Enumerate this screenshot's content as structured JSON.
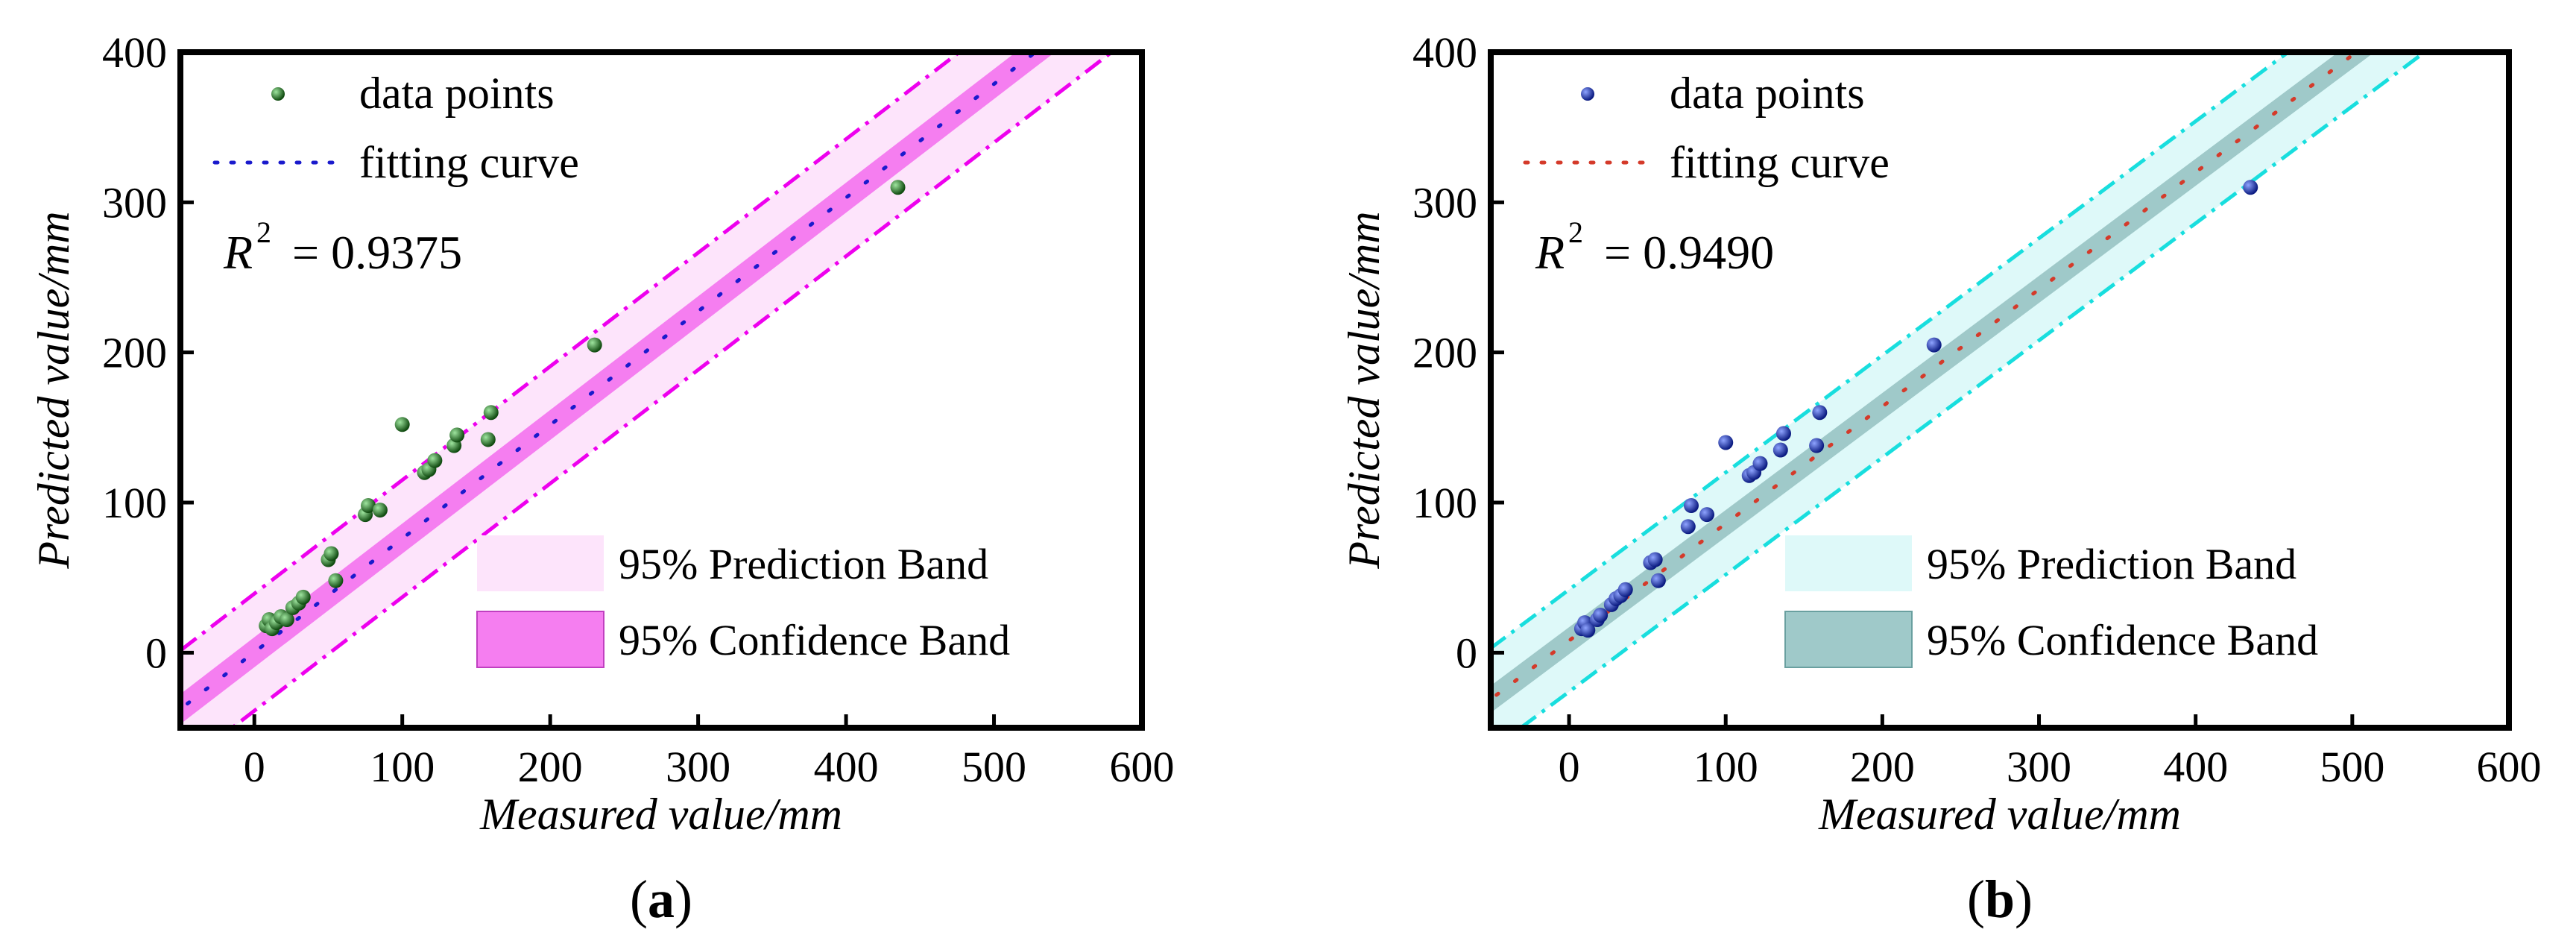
{
  "chart_data": [
    {
      "type": "scatter",
      "panel_label": "a",
      "xlabel": "Measured value/mm",
      "ylabel": "Predicted value/mm",
      "xlim": [
        -50,
        600
      ],
      "ylim": [
        -50,
        400
      ],
      "xticks": [
        0,
        100,
        200,
        300,
        400,
        500,
        600
      ],
      "yticks": [
        0,
        100,
        200,
        300,
        400
      ],
      "r2_label": "R",
      "r2_sup": "2",
      "r2_value": "= 0.9375",
      "fit": {
        "slope": 0.757,
        "intercept": 0.3
      },
      "confidence_halfwidth": 10,
      "prediction_halfwidth": 39,
      "colors": {
        "points": "#1e6b1e",
        "fit_line": "#1a1acc",
        "prediction_fill": "#fde4fb",
        "confidence_fill": "#f57ef0",
        "band_edge": "#ee00ee"
      },
      "legend": {
        "points": "data points",
        "fit": "fitting curve",
        "prediction": "95% Prediction Band",
        "confidence": "95% Confidence Band"
      },
      "points": [
        {
          "x": 8,
          "y": 18
        },
        {
          "x": 10,
          "y": 22
        },
        {
          "x": 12,
          "y": 16
        },
        {
          "x": 15,
          "y": 20
        },
        {
          "x": 18,
          "y": 24
        },
        {
          "x": 22,
          "y": 22
        },
        {
          "x": 26,
          "y": 30
        },
        {
          "x": 30,
          "y": 33
        },
        {
          "x": 33,
          "y": 37
        },
        {
          "x": 50,
          "y": 62
        },
        {
          "x": 52,
          "y": 66
        },
        {
          "x": 55,
          "y": 48
        },
        {
          "x": 75,
          "y": 92
        },
        {
          "x": 77,
          "y": 98
        },
        {
          "x": 85,
          "y": 95
        },
        {
          "x": 100,
          "y": 152
        },
        {
          "x": 115,
          "y": 120
        },
        {
          "x": 118,
          "y": 122
        },
        {
          "x": 122,
          "y": 128
        },
        {
          "x": 135,
          "y": 138
        },
        {
          "x": 137,
          "y": 145
        },
        {
          "x": 158,
          "y": 142
        },
        {
          "x": 160,
          "y": 160
        },
        {
          "x": 230,
          "y": 205
        },
        {
          "x": 435,
          "y": 310
        }
      ]
    },
    {
      "type": "scatter",
      "panel_label": "b",
      "xlabel": "Measured value/mm",
      "ylabel": "Predicted value/mm",
      "xlim": [
        -50,
        600
      ],
      "ylim": [
        -50,
        400
      ],
      "xticks": [
        0,
        100,
        200,
        300,
        400,
        500,
        600
      ],
      "yticks": [
        0,
        100,
        200,
        300,
        400
      ],
      "r2_label": "R",
      "r2_sup": "2",
      "r2_value": "= 0.9490",
      "fit": {
        "slope": 0.78,
        "intercept": 8
      },
      "confidence_halfwidth": 9,
      "prediction_halfwidth": 34,
      "colors": {
        "points": "#1c2fa8",
        "fit_line": "#d43a2a",
        "prediction_fill": "#def9f9",
        "confidence_fill": "#9fc9c9",
        "band_edge": "#18dede"
      },
      "legend": {
        "points": "data points",
        "fit": "fitting curve",
        "prediction": "95% Prediction Band",
        "confidence": "95% Confidence Band"
      },
      "points": [
        {
          "x": 8,
          "y": 16
        },
        {
          "x": 10,
          "y": 20
        },
        {
          "x": 12,
          "y": 15
        },
        {
          "x": 18,
          "y": 22
        },
        {
          "x": 20,
          "y": 25
        },
        {
          "x": 27,
          "y": 32
        },
        {
          "x": 30,
          "y": 36
        },
        {
          "x": 33,
          "y": 38
        },
        {
          "x": 36,
          "y": 42
        },
        {
          "x": 52,
          "y": 60
        },
        {
          "x": 55,
          "y": 62
        },
        {
          "x": 57,
          "y": 48
        },
        {
          "x": 76,
          "y": 84
        },
        {
          "x": 78,
          "y": 98
        },
        {
          "x": 88,
          "y": 92
        },
        {
          "x": 100,
          "y": 140
        },
        {
          "x": 115,
          "y": 118
        },
        {
          "x": 118,
          "y": 120
        },
        {
          "x": 122,
          "y": 126
        },
        {
          "x": 135,
          "y": 135
        },
        {
          "x": 137,
          "y": 146
        },
        {
          "x": 158,
          "y": 138
        },
        {
          "x": 160,
          "y": 160
        },
        {
          "x": 233,
          "y": 205
        },
        {
          "x": 435,
          "y": 310
        }
      ]
    }
  ]
}
